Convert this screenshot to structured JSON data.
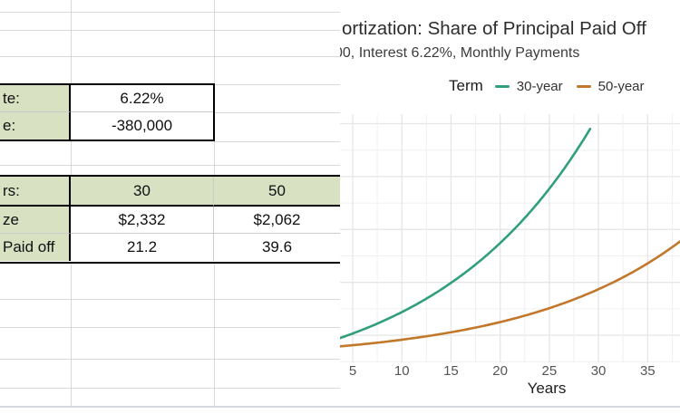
{
  "sheet": {
    "box1": {
      "rows": [
        {
          "label": "te:",
          "value": "6.22%"
        },
        {
          "label": "e:",
          "value": "-380,000"
        }
      ]
    },
    "table": {
      "header": {
        "label": "rs:",
        "col1": "30",
        "col2": "50"
      },
      "rows": [
        {
          "label": "ze",
          "col1": "$2,332",
          "col2": "$2,062"
        },
        {
          "label": "Paid off",
          "col1": "21.2",
          "col2": "39.6"
        }
      ]
    }
  },
  "chart": {
    "title": "ortization: Share of Principal Paid Off",
    "subtitle": "00, Interest 6.22%, Monthly Payments",
    "legend": {
      "title": "Term",
      "items": [
        {
          "label": "30-year",
          "color": "#319e7d"
        },
        {
          "label": "50-year",
          "color": "#c2772a"
        }
      ]
    },
    "xlabel": "Years",
    "x_ticks": [
      5,
      10,
      15,
      20,
      25,
      30,
      35
    ]
  },
  "chart_data": {
    "type": "line",
    "title": "ortization: Share of Principal Paid Off",
    "subtitle": "00, Interest 6.22%, Monthly Payments",
    "xlabel": "Years",
    "legend_title": "Term",
    "legend_position": "top",
    "grid": true,
    "x_ticks": [
      5,
      10,
      15,
      20,
      25,
      30,
      35
    ],
    "x_range_visible": [
      3.5,
      38.4
    ],
    "y_axis_note": "share of principal paid off, %; y-axis labels cropped out of frame",
    "interest_rate_percent": 6.22,
    "series": [
      {
        "name": "30-year",
        "color": "#319e7d",
        "term_years": 30,
        "x": [
          5,
          10,
          15,
          20,
          25,
          30
        ],
        "y_pct": [
          6.7,
          15.8,
          28.3,
          45.2,
          68.3,
          100
        ]
      },
      {
        "name": "50-year",
        "color": "#c2772a",
        "term_years": 50,
        "x": [
          5,
          10,
          15,
          20,
          25,
          30,
          35
        ],
        "y_pct": [
          1.7,
          4.1,
          7.2,
          11.5,
          17.3,
          25.1,
          35.7
        ]
      }
    ]
  }
}
